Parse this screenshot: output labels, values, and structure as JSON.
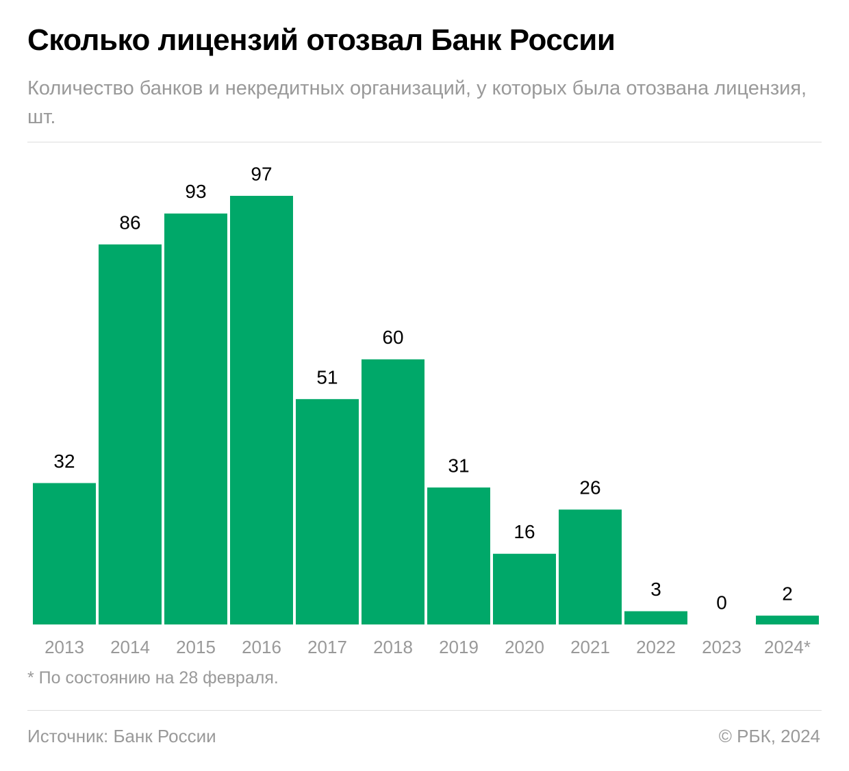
{
  "chart_data": {
    "type": "bar",
    "title": "Сколько лицензий отозвал Банк России",
    "subtitle": "Количество банков и некредитных организаций, у которых была отозвана лицензия, шт.",
    "categories": [
      "2013",
      "2014",
      "2015",
      "2016",
      "2017",
      "2018",
      "2019",
      "2020",
      "2021",
      "2022",
      "2023",
      "2024*"
    ],
    "values": [
      32,
      86,
      93,
      97,
      51,
      60,
      31,
      16,
      26,
      3,
      0,
      2
    ],
    "color": "#00a869",
    "footnote": "* По состоянию на 28 февраля.",
    "source": "Источник: Банк России",
    "copyright": "© РБК, 2024"
  }
}
